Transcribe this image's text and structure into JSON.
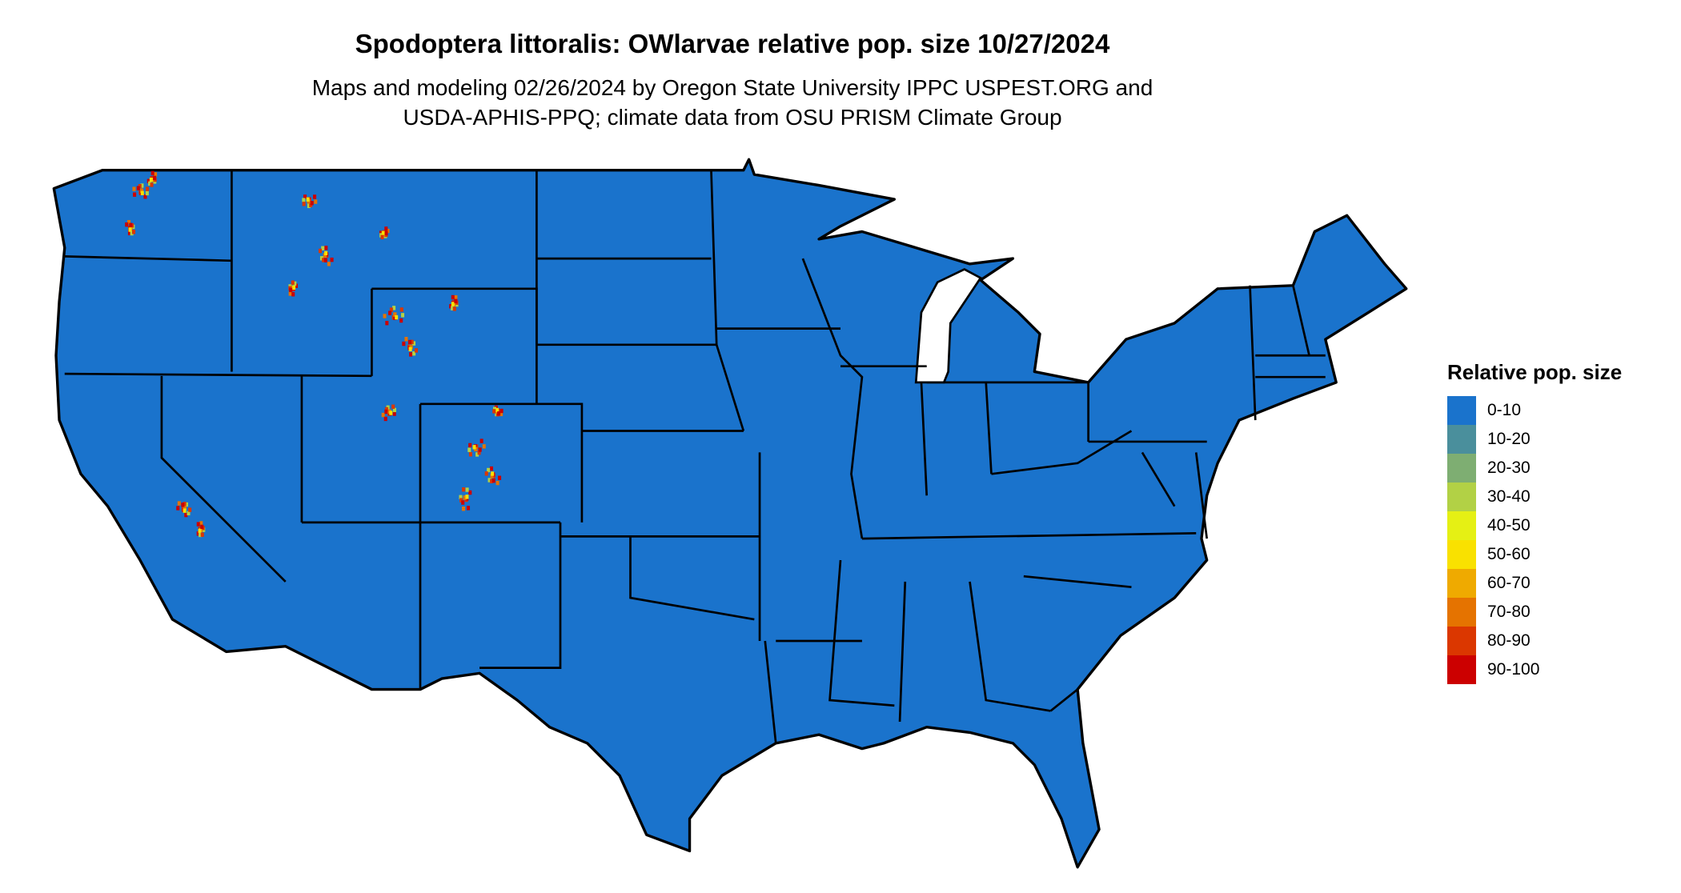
{
  "title": "Spodoptera littoralis: OWlarvae relative pop. size 10/27/2024",
  "subtitle_line1": "Maps and modeling 02/26/2024 by Oregon State University IPPC USPEST.ORG and",
  "subtitle_line2": "USDA-APHIS-PPQ; climate data from OSU PRISM Climate Group",
  "map": {
    "region": "Contiguous United States",
    "base_color": "#1a73cc",
    "dominant_class": "0-10",
    "hotspot_areas": [
      "Rocky Mountains (Montana, Idaho, Wyoming, Colorado)",
      "Sierra Nevada (California)",
      "Cascades (Washington)"
    ]
  },
  "legend": {
    "title": "Relative pop. size",
    "items": [
      {
        "label": "0-10",
        "color": "#1a73cc"
      },
      {
        "label": "10-20",
        "color": "#4a8f9c"
      },
      {
        "label": "20-30",
        "color": "#7eae72"
      },
      {
        "label": "30-40",
        "color": "#b2d145"
      },
      {
        "label": "40-50",
        "color": "#e5f014"
      },
      {
        "label": "50-60",
        "color": "#f9e100"
      },
      {
        "label": "60-70",
        "color": "#efaa00"
      },
      {
        "label": "70-80",
        "color": "#e57300"
      },
      {
        "label": "80-90",
        "color": "#db3700"
      },
      {
        "label": "90-100",
        "color": "#cc0000"
      }
    ]
  }
}
